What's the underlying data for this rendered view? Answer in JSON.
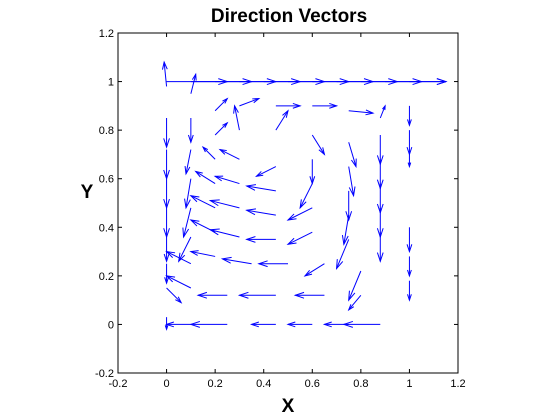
{
  "chart_data": {
    "type": "quiver",
    "title": "Direction Vectors",
    "xlabel": "X",
    "ylabel": "Y",
    "xlim": [
      -0.2,
      1.2
    ],
    "ylim": [
      -0.2,
      1.2
    ],
    "xticks": [
      "-0.2",
      "0",
      "0.2",
      "0.4",
      "0.6",
      "0.8",
      "1",
      "1.2"
    ],
    "yticks": [
      "-0.2",
      "0",
      "0.2",
      "0.4",
      "0.6",
      "0.8",
      "1",
      "1.2"
    ],
    "grid": false,
    "arrow_color": "#0000ff",
    "axis_color": "#000000",
    "arrows": [
      {
        "x": 0.0,
        "y": 1.0,
        "u": 0.25,
        "v": 0.0
      },
      {
        "x": 0.1,
        "y": 1.0,
        "u": 0.25,
        "v": 0.0
      },
      {
        "x": 0.2,
        "y": 1.0,
        "u": 0.25,
        "v": 0.0
      },
      {
        "x": 0.3,
        "y": 1.0,
        "u": 0.25,
        "v": 0.0
      },
      {
        "x": 0.4,
        "y": 1.0,
        "u": 0.25,
        "v": 0.0
      },
      {
        "x": 0.5,
        "y": 1.0,
        "u": 0.25,
        "v": 0.0
      },
      {
        "x": 0.6,
        "y": 1.0,
        "u": 0.25,
        "v": 0.0
      },
      {
        "x": 0.7,
        "y": 1.0,
        "u": 0.25,
        "v": 0.0
      },
      {
        "x": 0.8,
        "y": 1.0,
        "u": 0.25,
        "v": 0.0
      },
      {
        "x": 0.9,
        "y": 1.0,
        "u": 0.25,
        "v": 0.0
      },
      {
        "x": 1.0,
        "y": 1.0,
        "u": 0.15,
        "v": 0.0
      },
      {
        "x": 0.0,
        "y": 0.98,
        "u": -0.01,
        "v": 0.1
      },
      {
        "x": 0.1,
        "y": 0.95,
        "u": 0.02,
        "v": 0.08
      },
      {
        "x": 0.2,
        "y": 0.88,
        "u": 0.05,
        "v": 0.05
      },
      {
        "x": 0.3,
        "y": 0.9,
        "u": 0.08,
        "v": 0.03
      },
      {
        "x": 0.45,
        "y": 0.9,
        "u": 0.1,
        "v": 0.0
      },
      {
        "x": 0.6,
        "y": 0.9,
        "u": 0.1,
        "v": 0.0
      },
      {
        "x": 0.75,
        "y": 0.88,
        "u": 0.1,
        "v": -0.01
      },
      {
        "x": 0.88,
        "y": 0.85,
        "u": 0.02,
        "v": 0.05
      },
      {
        "x": 1.0,
        "y": 0.9,
        "u": 0.0,
        "v": -0.08
      },
      {
        "x": 0.0,
        "y": 0.85,
        "u": 0.0,
        "v": -0.12
      },
      {
        "x": 0.1,
        "y": 0.85,
        "u": 0.0,
        "v": -0.1
      },
      {
        "x": 0.2,
        "y": 0.78,
        "u": 0.05,
        "v": 0.05
      },
      {
        "x": 0.3,
        "y": 0.8,
        "u": -0.02,
        "v": 0.1
      },
      {
        "x": 0.45,
        "y": 0.8,
        "u": 0.05,
        "v": 0.08
      },
      {
        "x": 0.6,
        "y": 0.78,
        "u": 0.05,
        "v": -0.08
      },
      {
        "x": 0.75,
        "y": 0.75,
        "u": 0.03,
        "v": -0.1
      },
      {
        "x": 0.88,
        "y": 0.78,
        "u": 0.0,
        "v": -0.12
      },
      {
        "x": 1.0,
        "y": 0.8,
        "u": 0.0,
        "v": -0.1
      },
      {
        "x": 0.0,
        "y": 0.72,
        "u": 0.0,
        "v": -0.12
      },
      {
        "x": 0.1,
        "y": 0.72,
        "u": -0.02,
        "v": -0.1
      },
      {
        "x": 0.2,
        "y": 0.68,
        "u": -0.05,
        "v": 0.05
      },
      {
        "x": 0.3,
        "y": 0.68,
        "u": -0.08,
        "v": 0.04
      },
      {
        "x": 0.45,
        "y": 0.65,
        "u": -0.08,
        "v": -0.04
      },
      {
        "x": 0.6,
        "y": 0.68,
        "u": 0.0,
        "v": -0.1
      },
      {
        "x": 0.75,
        "y": 0.65,
        "u": 0.02,
        "v": -0.12
      },
      {
        "x": 0.88,
        "y": 0.68,
        "u": 0.0,
        "v": -0.12
      },
      {
        "x": 1.0,
        "y": 0.7,
        "u": 0.0,
        "v": -0.05
      },
      {
        "x": 0.0,
        "y": 0.6,
        "u": 0.0,
        "v": -0.12
      },
      {
        "x": 0.1,
        "y": 0.6,
        "u": -0.02,
        "v": -0.12
      },
      {
        "x": 0.2,
        "y": 0.58,
        "u": -0.08,
        "v": 0.05
      },
      {
        "x": 0.3,
        "y": 0.58,
        "u": -0.1,
        "v": 0.03
      },
      {
        "x": 0.45,
        "y": 0.55,
        "u": -0.12,
        "v": 0.02
      },
      {
        "x": 0.6,
        "y": 0.58,
        "u": -0.05,
        "v": -0.1
      },
      {
        "x": 0.75,
        "y": 0.55,
        "u": 0.0,
        "v": -0.12
      },
      {
        "x": 0.88,
        "y": 0.58,
        "u": 0.0,
        "v": -0.12
      },
      {
        "x": 0.0,
        "y": 0.48,
        "u": 0.0,
        "v": -0.12
      },
      {
        "x": 0.1,
        "y": 0.48,
        "u": -0.03,
        "v": -0.12
      },
      {
        "x": 0.2,
        "y": 0.48,
        "u": -0.1,
        "v": 0.05
      },
      {
        "x": 0.3,
        "y": 0.48,
        "u": -0.12,
        "v": 0.03
      },
      {
        "x": 0.45,
        "y": 0.45,
        "u": -0.12,
        "v": 0.02
      },
      {
        "x": 0.6,
        "y": 0.48,
        "u": -0.1,
        "v": -0.05
      },
      {
        "x": 0.75,
        "y": 0.45,
        "u": -0.02,
        "v": -0.12
      },
      {
        "x": 0.88,
        "y": 0.48,
        "u": 0.0,
        "v": -0.12
      },
      {
        "x": 0.0,
        "y": 0.36,
        "u": 0.0,
        "v": -0.1
      },
      {
        "x": 0.1,
        "y": 0.36,
        "u": -0.05,
        "v": -0.1
      },
      {
        "x": 0.2,
        "y": 0.38,
        "u": -0.1,
        "v": 0.05
      },
      {
        "x": 0.3,
        "y": 0.36,
        "u": -0.12,
        "v": 0.03
      },
      {
        "x": 0.45,
        "y": 0.35,
        "u": -0.12,
        "v": 0.0
      },
      {
        "x": 0.6,
        "y": 0.38,
        "u": -0.1,
        "v": -0.05
      },
      {
        "x": 0.75,
        "y": 0.35,
        "u": -0.05,
        "v": -0.12
      },
      {
        "x": 0.88,
        "y": 0.38,
        "u": 0.0,
        "v": -0.12
      },
      {
        "x": 1.0,
        "y": 0.4,
        "u": 0.0,
        "v": -0.1
      },
      {
        "x": 0.0,
        "y": 0.25,
        "u": 0.0,
        "v": -0.08
      },
      {
        "x": 0.1,
        "y": 0.25,
        "u": -0.1,
        "v": 0.05
      },
      {
        "x": 0.2,
        "y": 0.28,
        "u": -0.1,
        "v": 0.02
      },
      {
        "x": 0.35,
        "y": 0.25,
        "u": -0.12,
        "v": 0.02
      },
      {
        "x": 0.5,
        "y": 0.25,
        "u": -0.12,
        "v": 0.0
      },
      {
        "x": 0.65,
        "y": 0.25,
        "u": -0.08,
        "v": -0.05
      },
      {
        "x": 0.8,
        "y": 0.22,
        "u": -0.05,
        "v": -0.12
      },
      {
        "x": 1.0,
        "y": 0.28,
        "u": 0.0,
        "v": -0.08
      },
      {
        "x": 0.0,
        "y": 0.15,
        "u": 0.06,
        "v": -0.06
      },
      {
        "x": 0.1,
        "y": 0.15,
        "u": -0.1,
        "v": 0.05
      },
      {
        "x": 0.25,
        "y": 0.12,
        "u": -0.12,
        "v": 0.0
      },
      {
        "x": 0.45,
        "y": 0.12,
        "u": -0.15,
        "v": 0.0
      },
      {
        "x": 0.65,
        "y": 0.12,
        "u": -0.12,
        "v": 0.0
      },
      {
        "x": 0.8,
        "y": 0.12,
        "u": -0.05,
        "v": -0.06
      },
      {
        "x": 1.0,
        "y": 0.18,
        "u": 0.0,
        "v": -0.08
      },
      {
        "x": 0.0,
        "y": 0.03,
        "u": 0.0,
        "v": -0.05
      },
      {
        "x": 0.1,
        "y": 0.0,
        "u": -0.1,
        "v": 0.0
      },
      {
        "x": 0.25,
        "y": 0.0,
        "u": -0.15,
        "v": 0.0
      },
      {
        "x": 0.45,
        "y": 0.0,
        "u": -0.1,
        "v": 0.0
      },
      {
        "x": 0.6,
        "y": 0.0,
        "u": -0.1,
        "v": 0.0
      },
      {
        "x": 0.75,
        "y": 0.0,
        "u": -0.1,
        "v": 0.0
      },
      {
        "x": 0.88,
        "y": 0.0,
        "u": -0.15,
        "v": 0.0
      }
    ]
  }
}
